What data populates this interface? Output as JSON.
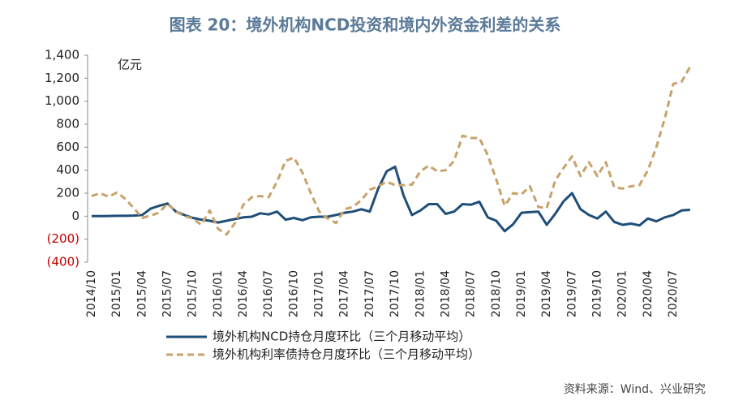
{
  "chart_data": {
    "type": "line",
    "title": "图表 20：境外机构NCD投资和境内外资金利差的关系",
    "unit_label": "亿元",
    "source": "资料来源：Wind、兴业研究",
    "categories": [
      "2014/10",
      null,
      null,
      "2015/01",
      null,
      null,
      "2015/04",
      null,
      null,
      "2015/07",
      null,
      null,
      "2015/10",
      null,
      null,
      "2016/01",
      null,
      null,
      "2016/04",
      null,
      null,
      "2016/07",
      null,
      null,
      "2016/10",
      null,
      null,
      "2017/01",
      null,
      null,
      "2017/04",
      null,
      null,
      "2017/07",
      null,
      null,
      "2017/10",
      null,
      null,
      "2018/01",
      null,
      null,
      "2018/04",
      null,
      null,
      "2018/07",
      null,
      null,
      "2018/10",
      null,
      null,
      "2019/01",
      null,
      null,
      "2019/04",
      null,
      null,
      "2019/07",
      null,
      null,
      "2019/10",
      null,
      null,
      "2020/01",
      null,
      null,
      "2020/04",
      null,
      null,
      "2020/07",
      null,
      null
    ],
    "series": [
      {
        "name": "境外机构NCD持仓月度环比（三个月移动平均）",
        "color": "#1f4e79",
        "dashed": false,
        "values": [
          0,
          0,
          2,
          3,
          3,
          5,
          10,
          65,
          90,
          110,
          40,
          10,
          -15,
          -30,
          -40,
          -55,
          -40,
          -25,
          -10,
          -5,
          25,
          15,
          40,
          -30,
          -15,
          -35,
          -10,
          -5,
          -5,
          10,
          30,
          40,
          60,
          40,
          240,
          390,
          430,
          180,
          10,
          50,
          105,
          105,
          20,
          40,
          105,
          100,
          125,
          -10,
          -40,
          -130,
          -70,
          30,
          35,
          40,
          -75,
          20,
          130,
          200,
          60,
          10,
          -20,
          40,
          -50,
          -75,
          -65,
          -80,
          -20,
          -45,
          -10,
          10,
          50,
          55
        ]
      },
      {
        "name": "境外机构利率债持仓月度环比（三个月移动平均）",
        "color": "#c8a26a",
        "dashed": true,
        "values": [
          175,
          200,
          170,
          205,
          150,
          70,
          -15,
          5,
          30,
          110,
          40,
          0,
          -20,
          -75,
          50,
          -110,
          -160,
          -60,
          100,
          165,
          175,
          165,
          300,
          480,
          510,
          380,
          200,
          40,
          -20,
          -60,
          60,
          80,
          140,
          230,
          260,
          300,
          270,
          270,
          275,
          390,
          440,
          390,
          400,
          480,
          700,
          680,
          680,
          530,
          320,
          90,
          200,
          190,
          260,
          80,
          70,
          310,
          420,
          520,
          350,
          470,
          350,
          470,
          250,
          240,
          260,
          270,
          400,
          600,
          850,
          1150,
          1170,
          1300
        ]
      }
    ],
    "ylim": [
      -400,
      1400
    ],
    "yticks": [
      {
        "value": -400,
        "label": "(400)"
      },
      {
        "value": -200,
        "label": "(200)"
      },
      0,
      200,
      400,
      600,
      800,
      {
        "value": 1000,
        "label": "1,000"
      },
      {
        "value": 1200,
        "label": "1,200"
      },
      {
        "value": 1400,
        "label": "1,400"
      }
    ],
    "negative_tick_color": "#c00000",
    "grid": false
  }
}
